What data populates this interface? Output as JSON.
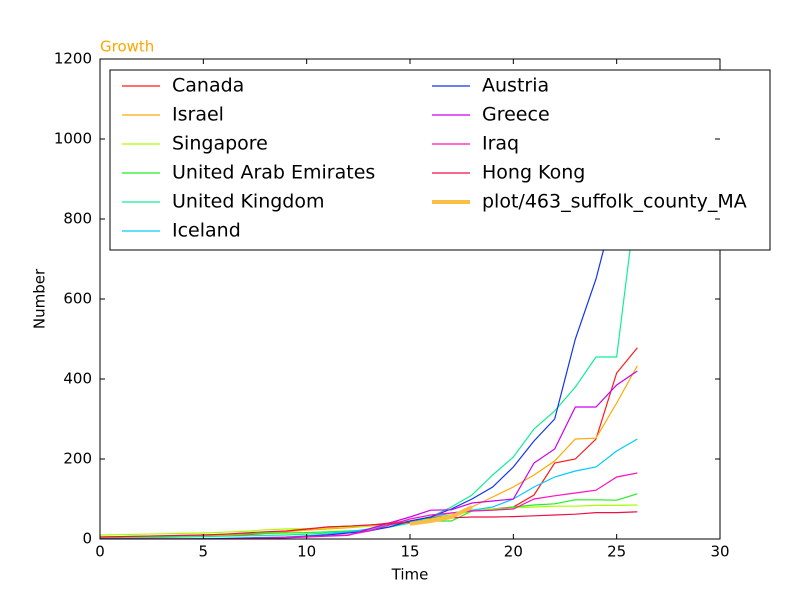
{
  "chart_data": {
    "type": "line",
    "title": "Growth",
    "x_label": "Time",
    "y_label": "Number",
    "x": [
      0,
      1,
      2,
      3,
      4,
      5,
      6,
      7,
      8,
      9,
      10,
      11,
      12,
      13,
      14,
      15,
      16,
      17,
      18,
      19,
      20,
      21,
      22,
      23,
      24,
      25,
      26
    ],
    "xlim": [
      0,
      30
    ],
    "xticks": [
      0,
      5,
      10,
      15,
      20,
      25,
      30
    ],
    "ylim": [
      0,
      1200
    ],
    "yticks": [
      0,
      200,
      400,
      600,
      800,
      1000,
      1200
    ],
    "legend": "upper-left",
    "series": [
      {
        "name": "Canada",
        "color": "#ff1a1a",
        "values": [
          2,
          3,
          4,
          5,
          6,
          7,
          8,
          10,
          14,
          18,
          24,
          30,
          32,
          34,
          40,
          45,
          52,
          60,
          70,
          75,
          80,
          110,
          190,
          200,
          250,
          415,
          478
        ]
      },
      {
        "name": "Israel",
        "color": "#ffaa00",
        "values": [
          3,
          4,
          5,
          6,
          7,
          8,
          10,
          12,
          15,
          18,
          22,
          25,
          28,
          32,
          36,
          40,
          48,
          60,
          80,
          105,
          130,
          160,
          195,
          250,
          252,
          340,
          433
        ]
      },
      {
        "name": "Singapore",
        "color": "#aaff00",
        "values": [
          10,
          11,
          12,
          13,
          14,
          15,
          17,
          19,
          23,
          25,
          26,
          28,
          30,
          33,
          38,
          45,
          50,
          60,
          70,
          75,
          78,
          80,
          82,
          82,
          84,
          84,
          85
        ]
      },
      {
        "name": "United Arab Emirates",
        "color": "#22ee22",
        "values": [
          5,
          6,
          7,
          8,
          9,
          10,
          12,
          13,
          14,
          15,
          16,
          18,
          20,
          22,
          30,
          40,
          45,
          45,
          70,
          72,
          80,
          85,
          88,
          98,
          98,
          97,
          113
        ]
      },
      {
        "name": "United Kingdom",
        "color": "#11ee99",
        "values": [
          1,
          2,
          3,
          4,
          5,
          6,
          7,
          8,
          9,
          10,
          12,
          15,
          18,
          22,
          30,
          40,
          55,
          80,
          110,
          160,
          205,
          275,
          320,
          380,
          455,
          455,
          870
        ]
      },
      {
        "name": "Iceland",
        "color": "#00ccff",
        "values": [
          0,
          0,
          0,
          0,
          0,
          1,
          2,
          3,
          4,
          5,
          8,
          12,
          18,
          25,
          35,
          45,
          55,
          65,
          72,
          80,
          100,
          130,
          155,
          170,
          180,
          220,
          250
        ]
      },
      {
        "name": "Austria",
        "color": "#1133ee",
        "values": [
          0,
          0,
          0,
          0,
          0,
          0,
          1,
          2,
          3,
          4,
          7,
          10,
          15,
          20,
          30,
          45,
          55,
          75,
          100,
          130,
          180,
          245,
          300,
          500,
          650,
          850,
          1000
        ]
      },
      {
        "name": "Greece",
        "color": "#cc00ee",
        "values": [
          0,
          0,
          0,
          0,
          0,
          0,
          0,
          1,
          2,
          3,
          5,
          7,
          9,
          25,
          40,
          55,
          72,
          73,
          90,
          95,
          100,
          190,
          225,
          330,
          330,
          385,
          420
        ]
      },
      {
        "name": "Iraq",
        "color": "#ff11bb",
        "values": [
          0,
          0,
          0,
          0,
          0,
          0,
          0,
          1,
          2,
          4,
          6,
          8,
          10,
          20,
          35,
          50,
          60,
          65,
          70,
          72,
          75,
          100,
          108,
          115,
          122,
          155,
          165
        ]
      },
      {
        "name": "Hong Kong",
        "color": "#ee1144",
        "values": [
          5,
          6,
          7,
          8,
          9,
          10,
          12,
          15,
          18,
          20,
          25,
          30,
          32,
          35,
          38,
          42,
          48,
          53,
          55,
          55,
          56,
          58,
          60,
          62,
          66,
          66,
          68
        ]
      },
      {
        "name": "plot/463_suffolk_county_MA",
        "color": "#f9bf45",
        "width": 4,
        "values": [
          null,
          null,
          null,
          null,
          null,
          null,
          null,
          null,
          null,
          null,
          null,
          null,
          null,
          null,
          null,
          38,
          45,
          55,
          80,
          null,
          null,
          null,
          null,
          null,
          null,
          null,
          null
        ]
      }
    ]
  }
}
